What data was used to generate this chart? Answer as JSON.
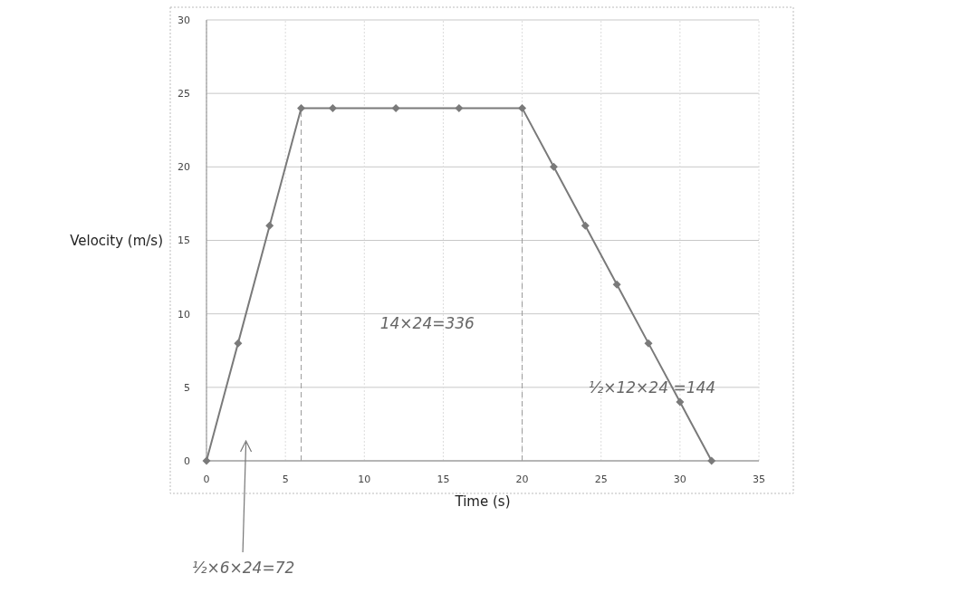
{
  "chart_data": {
    "type": "line",
    "xlabel": "Time (s)",
    "ylabel": "Velocity (m/s)",
    "x": [
      0,
      2,
      4,
      6,
      8,
      12,
      16,
      20,
      22,
      24,
      26,
      28,
      30,
      32
    ],
    "series": [
      {
        "color": "#7a7a7a",
        "values": [
          0,
          8,
          16,
          24,
          24,
          24,
          24,
          24,
          20,
          16,
          12,
          8,
          4,
          0
        ]
      }
    ],
    "xlim": [
      0,
      35
    ],
    "ylim": [
      0,
      30
    ],
    "xticks": [
      0,
      5,
      10,
      15,
      20,
      25,
      30,
      35
    ],
    "yticks": [
      0,
      5,
      10,
      15,
      20,
      25,
      30
    ],
    "grid": true,
    "marker": "diamond",
    "line_style": "solid",
    "ref_lines": [
      {
        "axis": "x",
        "value": 6,
        "line_style": "dashed",
        "color": "#999999"
      },
      {
        "axis": "x",
        "value": 20,
        "line_style": "dashed",
        "color": "#999999"
      }
    ],
    "annotations": [
      "½×6×24=72",
      "14×24=336",
      "½×12×24 =144"
    ]
  }
}
